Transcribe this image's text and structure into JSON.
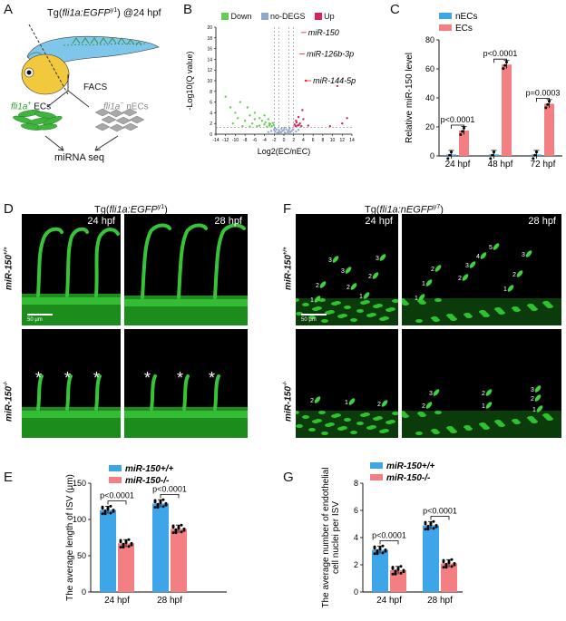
{
  "panels": {
    "A": {
      "label": "A",
      "title_pre": "Tg(",
      "title_gene": "fli1a:EGFP",
      "title_sup": "y1",
      "title_post": ") @24 hpf",
      "facs": "FACS",
      "ecs_gene": "fli1a",
      "ecs_sup": "+",
      "ecs_text": " ECs",
      "necs_gene": "fli1a",
      "necs_sup": "−",
      "necs_text": " nECs",
      "seq": "miRNA seq"
    },
    "B": {
      "label": "B",
      "legend": [
        "Down",
        "no-DEGS",
        "Up"
      ],
      "colors": {
        "down": "#66cc55",
        "nodeg": "#8fa8c8",
        "up": "#d6245a"
      },
      "annotations": [
        "miR-150",
        "miR-126b-3p",
        "miR-144-5p"
      ],
      "ylabel": "-Log10(Q value)",
      "xlabel": "Log2(EC/nEC)"
    },
    "C": {
      "label": "C"
    },
    "D": {
      "label": "D",
      "title_pre": "Tg(",
      "title_gene": "fli1a:EGFP",
      "title_sup": "y1",
      "title_post": ")",
      "time1": "24 hpf",
      "time2": "28 hpf",
      "row1": "miR-150",
      "row1_sup": "+/+",
      "row2": "miR-150",
      "row2_sup": "-/-",
      "scale": "50 μm",
      "asterisk": "*"
    },
    "F": {
      "label": "F",
      "title_pre": "Tg(",
      "title_gene": "fli1a:nEGFP",
      "title_sup": "y7",
      "title_post": ")",
      "time1": "24 hpf",
      "time2": "28 hpf",
      "row1": "miR-150",
      "row1_sup": "+/+",
      "row2": "miR-150",
      "row2_sup": "-/-",
      "scale": "50 μm"
    },
    "E": {
      "label": "E"
    },
    "G": {
      "label": "G"
    }
  },
  "chart_data": [
    {
      "id": "B",
      "type": "scatter",
      "title": "",
      "xlabel": "Log2(EC/nEC)",
      "ylabel": "-Log10(Q value)",
      "xlim": [
        -14,
        14
      ],
      "ylim": [
        0,
        20
      ],
      "xticks": [
        "-14",
        "-12",
        "-10",
        "-8",
        "-6",
        "-4",
        "-2",
        "0",
        "2",
        "4",
        "6",
        "8",
        "10",
        "12",
        "14"
      ],
      "yticks": [
        "0",
        "2",
        "4",
        "6",
        "8",
        "10",
        "12",
        "14",
        "16",
        "18",
        "20"
      ],
      "series": [
        {
          "name": "Down",
          "color": "#66cc55",
          "points": [
            [
              -12,
              7
            ],
            [
              -11,
              5
            ],
            [
              -10,
              4
            ],
            [
              -9.5,
              3
            ],
            [
              -9,
              6
            ],
            [
              -8,
              2.5
            ],
            [
              -7.5,
              5
            ],
            [
              -7,
              3.5
            ],
            [
              -6.5,
              2
            ],
            [
              -6,
              4
            ],
            [
              -5.5,
              1.5
            ],
            [
              -5,
              3
            ],
            [
              -4.5,
              2.5
            ],
            [
              -4,
              1.8
            ],
            [
              -3.8,
              2.2
            ],
            [
              -3.5,
              1.4
            ],
            [
              -3.2,
              2.8
            ],
            [
              -3,
              1.6
            ],
            [
              -2.8,
              1.9
            ],
            [
              -2.5,
              1.5
            ],
            [
              -2.3,
              2.1
            ],
            [
              -2.1,
              1.7
            ],
            [
              -10.5,
              2
            ],
            [
              -8.5,
              1.5
            ],
            [
              -7,
              1.4
            ],
            [
              -6,
              2.8
            ],
            [
              -5,
              1.6
            ],
            [
              -4,
              3.5
            ],
            [
              -3,
              2
            ]
          ]
        },
        {
          "name": "no-DEGS",
          "color": "#8fa8c8",
          "points": [
            [
              -2,
              0.8
            ],
            [
              -1.8,
              0.5
            ],
            [
              -1.5,
              0.9
            ],
            [
              -1.2,
              0.3
            ],
            [
              -1,
              0.7
            ],
            [
              -0.8,
              0.4
            ],
            [
              -0.5,
              1
            ],
            [
              -0.3,
              0.6
            ],
            [
              0,
              0.8
            ],
            [
              0.2,
              0.3
            ],
            [
              0.5,
              0.9
            ],
            [
              0.8,
              0.5
            ],
            [
              1,
              0.7
            ],
            [
              1.3,
              0.4
            ],
            [
              1.6,
              0.6
            ],
            [
              1.9,
              0.9
            ],
            [
              -1.4,
              0.2
            ],
            [
              0.7,
              0.15
            ],
            [
              -0.6,
              0.35
            ],
            [
              1.2,
              1.1
            ],
            [
              -1.9,
              1.1
            ],
            [
              0.1,
              1.2
            ],
            [
              2.5,
              0.5
            ],
            [
              3,
              0.8
            ],
            [
              -2.6,
              0.6
            ],
            [
              -3.2,
              0.4
            ]
          ]
        },
        {
          "name": "Up",
          "color": "#d6245a",
          "points": [
            [
              2.2,
              1.8
            ],
            [
              2.5,
              2.5
            ],
            [
              2.8,
              1.6
            ],
            [
              3,
              3.2
            ],
            [
              3.3,
              2
            ],
            [
              3.6,
              1.5
            ],
            [
              4,
              2.8
            ],
            [
              4.5,
              10
            ],
            [
              2.4,
              1.5
            ],
            [
              2.6,
              2.2
            ],
            [
              3.1,
              1.7
            ],
            [
              5,
              1.6
            ],
            [
              11,
              9
            ],
            [
              12,
              2
            ],
            [
              13,
              3
            ],
            [
              9.5,
              1.5
            ],
            [
              3.8,
              4.5
            ]
          ]
        }
      ],
      "annotations": [
        {
          "text": "miR-150",
          "x": 3.5,
          "y": 19
        },
        {
          "text": "miR-126b-3p",
          "x": 3.2,
          "y": 15
        },
        {
          "text": "miR-144-5p",
          "x": 4.5,
          "y": 10
        }
      ]
    },
    {
      "id": "C",
      "type": "bar",
      "title": "",
      "xlabel": "",
      "ylabel": "Relative miR-150 level",
      "ylim": [
        0,
        80
      ],
      "yticks": [
        "0",
        "20",
        "40",
        "60",
        "80"
      ],
      "categories": [
        "24 hpf",
        "48 hpf",
        "72 hpf"
      ],
      "series": [
        {
          "name": "nECs",
          "color": "#3da5e8",
          "values": [
            1,
            1,
            1
          ]
        },
        {
          "name": "ECs",
          "color": "#f47f82",
          "values": [
            17.5,
            63,
            36
          ]
        }
      ],
      "pvalues": [
        "p<0.0001",
        "p<0.0001",
        "p=0.0003"
      ]
    },
    {
      "id": "E",
      "type": "bar",
      "title": "",
      "xlabel": "",
      "ylabel": "The average length of ISV (μm)",
      "ylim": [
        0,
        150
      ],
      "yticks": [
        "0",
        "50",
        "100",
        "150"
      ],
      "categories": [
        "24 hpf",
        "28 hpf"
      ],
      "series": [
        {
          "name": "miR-150+/+",
          "color": "#3da5e8",
          "values": [
            113,
            122
          ]
        },
        {
          "name": "miR-150-/-",
          "color": "#f47f82",
          "values": [
            67,
            87
          ]
        }
      ],
      "pvalues": [
        "p<0.0001",
        "p<0.0001"
      ]
    },
    {
      "id": "G",
      "type": "bar",
      "title": "",
      "xlabel": "",
      "ylabel": "The average number of endothelial cell nuclei per ISV",
      "ylim": [
        0,
        8
      ],
      "yticks": [
        "0",
        "2",
        "4",
        "6",
        "8"
      ],
      "categories": [
        "24 hpf",
        "28 hpf"
      ],
      "series": [
        {
          "name": "miR-150+/+",
          "color": "#3da5e8",
          "values": [
            3.1,
            4.9
          ]
        },
        {
          "name": "miR-150-/-",
          "color": "#f47f82",
          "values": [
            1.6,
            2.1
          ]
        }
      ],
      "pvalues": [
        "p<0.0001",
        "p<0.0001"
      ]
    }
  ]
}
